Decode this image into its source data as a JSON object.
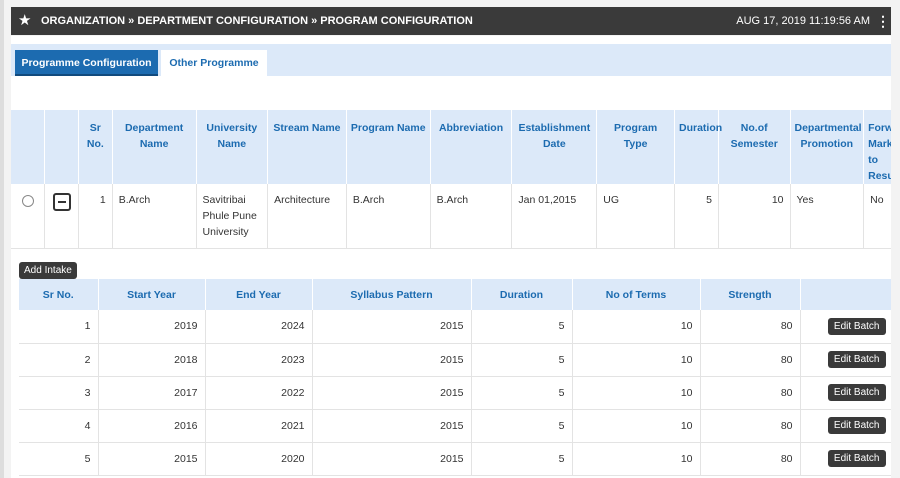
{
  "header": {
    "breadcrumb": "ORGANIZATION » DEPARTMENT CONFIGURATION » PROGRAM CONFIGURATION",
    "datetime": "AUG 17, 2019  11:19:56 AM"
  },
  "tabs": [
    {
      "label": "Programme Configuration"
    },
    {
      "label": "Other Programme"
    }
  ],
  "program_table": {
    "columns": [
      "Sr No.",
      "Department Name",
      "University Name",
      "Stream Name",
      "Program Name",
      "Abbreviation",
      "Establishment Date",
      "Program Type",
      "Duration",
      "No.of Semester",
      "Departmental Promotion",
      "Forward Marks to Result"
    ],
    "row": {
      "sr": "1",
      "department": "B.Arch",
      "university": "Savitribai Phule Pune University",
      "stream": "Architecture",
      "program": "B.Arch",
      "abbreviation": "B.Arch",
      "establishment": "Jan 01,2015",
      "type": "UG",
      "duration": "5",
      "semesters": "10",
      "promotion": "Yes",
      "forward": "No"
    }
  },
  "add_intake_label": "Add Intake",
  "intake_table": {
    "columns": [
      "Sr No.",
      "Start Year",
      "End Year",
      "Syllabus Pattern",
      "Duration",
      "No of Terms",
      "Strength",
      ""
    ],
    "rows": [
      {
        "sr": "1",
        "start": "2019",
        "end": "2024",
        "syllabus": "2015",
        "duration": "5",
        "terms": "10",
        "strength": "80",
        "action": "Edit Batch"
      },
      {
        "sr": "2",
        "start": "2018",
        "end": "2023",
        "syllabus": "2015",
        "duration": "5",
        "terms": "10",
        "strength": "80",
        "action": "Edit Batch"
      },
      {
        "sr": "3",
        "start": "2017",
        "end": "2022",
        "syllabus": "2015",
        "duration": "5",
        "terms": "10",
        "strength": "80",
        "action": "Edit Batch"
      },
      {
        "sr": "4",
        "start": "2016",
        "end": "2021",
        "syllabus": "2015",
        "duration": "5",
        "terms": "10",
        "strength": "80",
        "action": "Edit Batch"
      },
      {
        "sr": "5",
        "start": "2015",
        "end": "2020",
        "syllabus": "2015",
        "duration": "5",
        "terms": "10",
        "strength": "80",
        "action": "Edit Batch"
      }
    ]
  }
}
